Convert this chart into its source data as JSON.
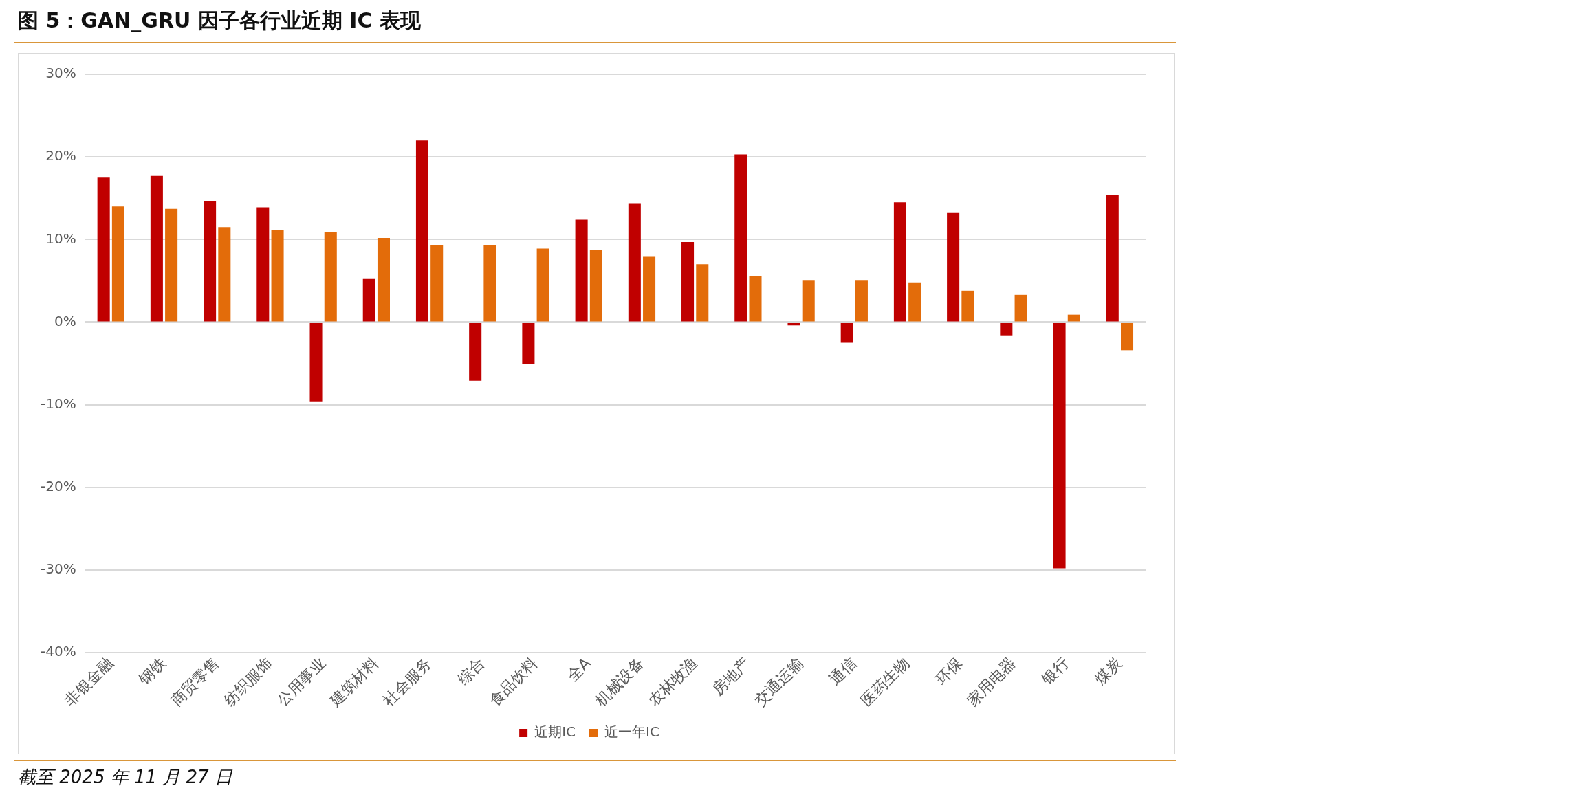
{
  "chart_data": {
    "type": "bar",
    "title": "图 5：GAN_GRU 因子各行业近期 IC 表现",
    "categories": [
      "非银金融",
      "钢铁",
      "商贸零售",
      "纺织服饰",
      "公用事业",
      "建筑材料",
      "社会服务",
      "综合",
      "食品饮料",
      "全A",
      "机械设备",
      "农林牧渔",
      "房地产",
      "交通运输",
      "通信",
      "医药生物",
      "环保",
      "家用电器",
      "银行",
      "煤炭"
    ],
    "series": [
      {
        "name": "近期IC",
        "color": "#c00000",
        "values": [
          17.5,
          17.7,
          14.6,
          13.9,
          -9.6,
          5.3,
          22.0,
          -7.1,
          -5.1,
          12.4,
          14.4,
          9.7,
          20.3,
          -0.4,
          -2.5,
          14.5,
          13.2,
          -1.6,
          -29.8,
          15.4
        ]
      },
      {
        "name": "近一年IC",
        "color": "#e36c0a",
        "values": [
          14.0,
          13.7,
          11.5,
          11.2,
          10.9,
          10.2,
          9.3,
          9.3,
          8.9,
          8.7,
          7.9,
          7.0,
          5.6,
          5.1,
          5.1,
          4.8,
          3.8,
          3.3,
          0.9,
          -3.4
        ]
      }
    ],
    "ylim": [
      -40,
      30
    ],
    "yticks": [
      {
        "value": -40,
        "label": "-40%"
      },
      {
        "value": -30,
        "label": "-30%"
      },
      {
        "value": -20,
        "label": "-20%"
      },
      {
        "value": -10,
        "label": "-10%"
      },
      {
        "value": 0,
        "label": "0%"
      },
      {
        "value": 10,
        "label": "10%"
      },
      {
        "value": 20,
        "label": "20%"
      },
      {
        "value": 30,
        "label": "30%"
      }
    ],
    "grid": "y",
    "legend": "bottom",
    "annotations": [
      "截至 2025 年 11 月 27 日"
    ]
  }
}
